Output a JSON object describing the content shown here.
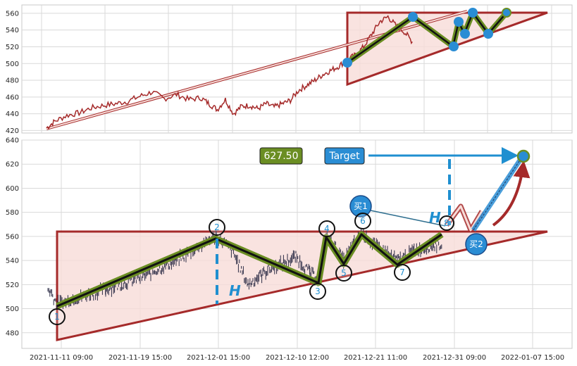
{
  "chart_data": [
    {
      "type": "line",
      "panel": "overview",
      "ylim": [
        417,
        570
      ],
      "yticks": [
        "420",
        "440",
        "460",
        "480",
        "500",
        "520",
        "540",
        "560"
      ],
      "ytick_values": [
        420,
        440,
        460,
        480,
        500,
        520,
        540,
        560
      ],
      "grid": true,
      "x_range": [
        0,
        100
      ],
      "series": [
        {
          "values": [
            [
              0,
              423
            ],
            [
              2,
              431
            ],
            [
              5,
              438
            ],
            [
              8,
              441
            ],
            [
              11,
              447
            ],
            [
              14,
              450
            ],
            [
              17,
              452
            ],
            [
              20,
              455
            ],
            [
              23,
              461
            ],
            [
              26,
              466
            ],
            [
              29,
              458
            ],
            [
              32,
              463
            ],
            [
              35,
              457
            ],
            [
              38,
              459
            ],
            [
              40,
              452
            ],
            [
              42,
              445
            ],
            [
              44,
              457
            ],
            [
              46,
              440
            ],
            [
              48,
              449
            ],
            [
              50,
              450
            ],
            [
              52,
              446
            ],
            [
              54,
              452
            ],
            [
              56,
              448
            ],
            [
              58,
              452
            ],
            [
              60,
              456
            ],
            [
              62,
              468
            ],
            [
              64,
              474
            ],
            [
              66,
              480
            ],
            [
              68,
              487
            ],
            [
              70,
              492
            ],
            [
              72,
              497
            ],
            [
              74,
              505
            ],
            [
              76,
              510
            ],
            [
              78,
              520
            ],
            [
              80,
              535
            ],
            [
              82,
              550
            ],
            [
              84,
              556
            ],
            [
              86,
              545
            ],
            [
              88,
              538
            ],
            [
              90,
              526
            ]
          ]
        }
      ],
      "pattern_points": [
        {
          "x": 74,
          "y": 503
        },
        {
          "x": 86,
          "y": 560
        },
        {
          "x": 92,
          "y": 524
        },
        {
          "x": 94,
          "y": 554
        },
        {
          "x": 95,
          "y": 539
        },
        {
          "x": 97,
          "y": 564
        },
        {
          "x": 100,
          "y": 539
        },
        {
          "x": 103,
          "y": 564
        }
      ],
      "triangle": {
        "x": [
          74,
          74,
          111
        ],
        "y": [
          565,
          476,
          565
        ]
      },
      "trendline": {
        "x": [
          0,
          103
        ],
        "y": [
          423,
          563
        ]
      }
    },
    {
      "type": "line",
      "panel": "detail",
      "ylim": [
        467,
        640
      ],
      "yticks": [
        "480",
        "500",
        "520",
        "540",
        "560",
        "580",
        "600",
        "620",
        "640"
      ],
      "ytick_values": [
        480,
        500,
        520,
        540,
        560,
        580,
        600,
        620,
        640
      ],
      "xticks": [
        "2021-11-11 09:00",
        "2021-11-19 15:00",
        "2021-12-01 15:00",
        "2021-12-10 12:00",
        "2021-12-21 11:00",
        "2021-12-31 09:00",
        "2022-01-07 15:00"
      ],
      "grid": true,
      "pattern_points": [
        {
          "label": "1",
          "x": 0,
          "y": 504
        },
        {
          "label": "2",
          "x": 30,
          "y": 560
        },
        {
          "label": "3",
          "x": 49.6,
          "y": 523
        },
        {
          "label": "4",
          "x": 51.5,
          "y": 561
        },
        {
          "label": "5",
          "x": 54.9,
          "y": 539
        },
        {
          "label": "6",
          "x": 57.9,
          "y": 564
        },
        {
          "label": "7",
          "x": 64.6,
          "y": 539
        },
        {
          "label": "8",
          "x": 72.9,
          "y": 564
        }
      ],
      "triangle": {
        "x": [
          0,
          0,
          92.8
        ],
        "y": [
          565,
          476,
          565
        ]
      },
      "projection": {
        "x": [
          72.9,
          75.8,
          77.6,
          79.8
        ],
        "y": [
          564,
          585,
          563,
          578
        ]
      },
      "target": {
        "x": 87.7,
        "y": 628
      },
      "target_value": "627.50",
      "target_label": "Target",
      "buy_points": [
        {
          "label": "买1",
          "x": 72.9,
          "y": 565
        },
        {
          "label": "买2",
          "x": 78.3,
          "y": 565
        }
      ],
      "height_marker": "H"
    }
  ]
}
